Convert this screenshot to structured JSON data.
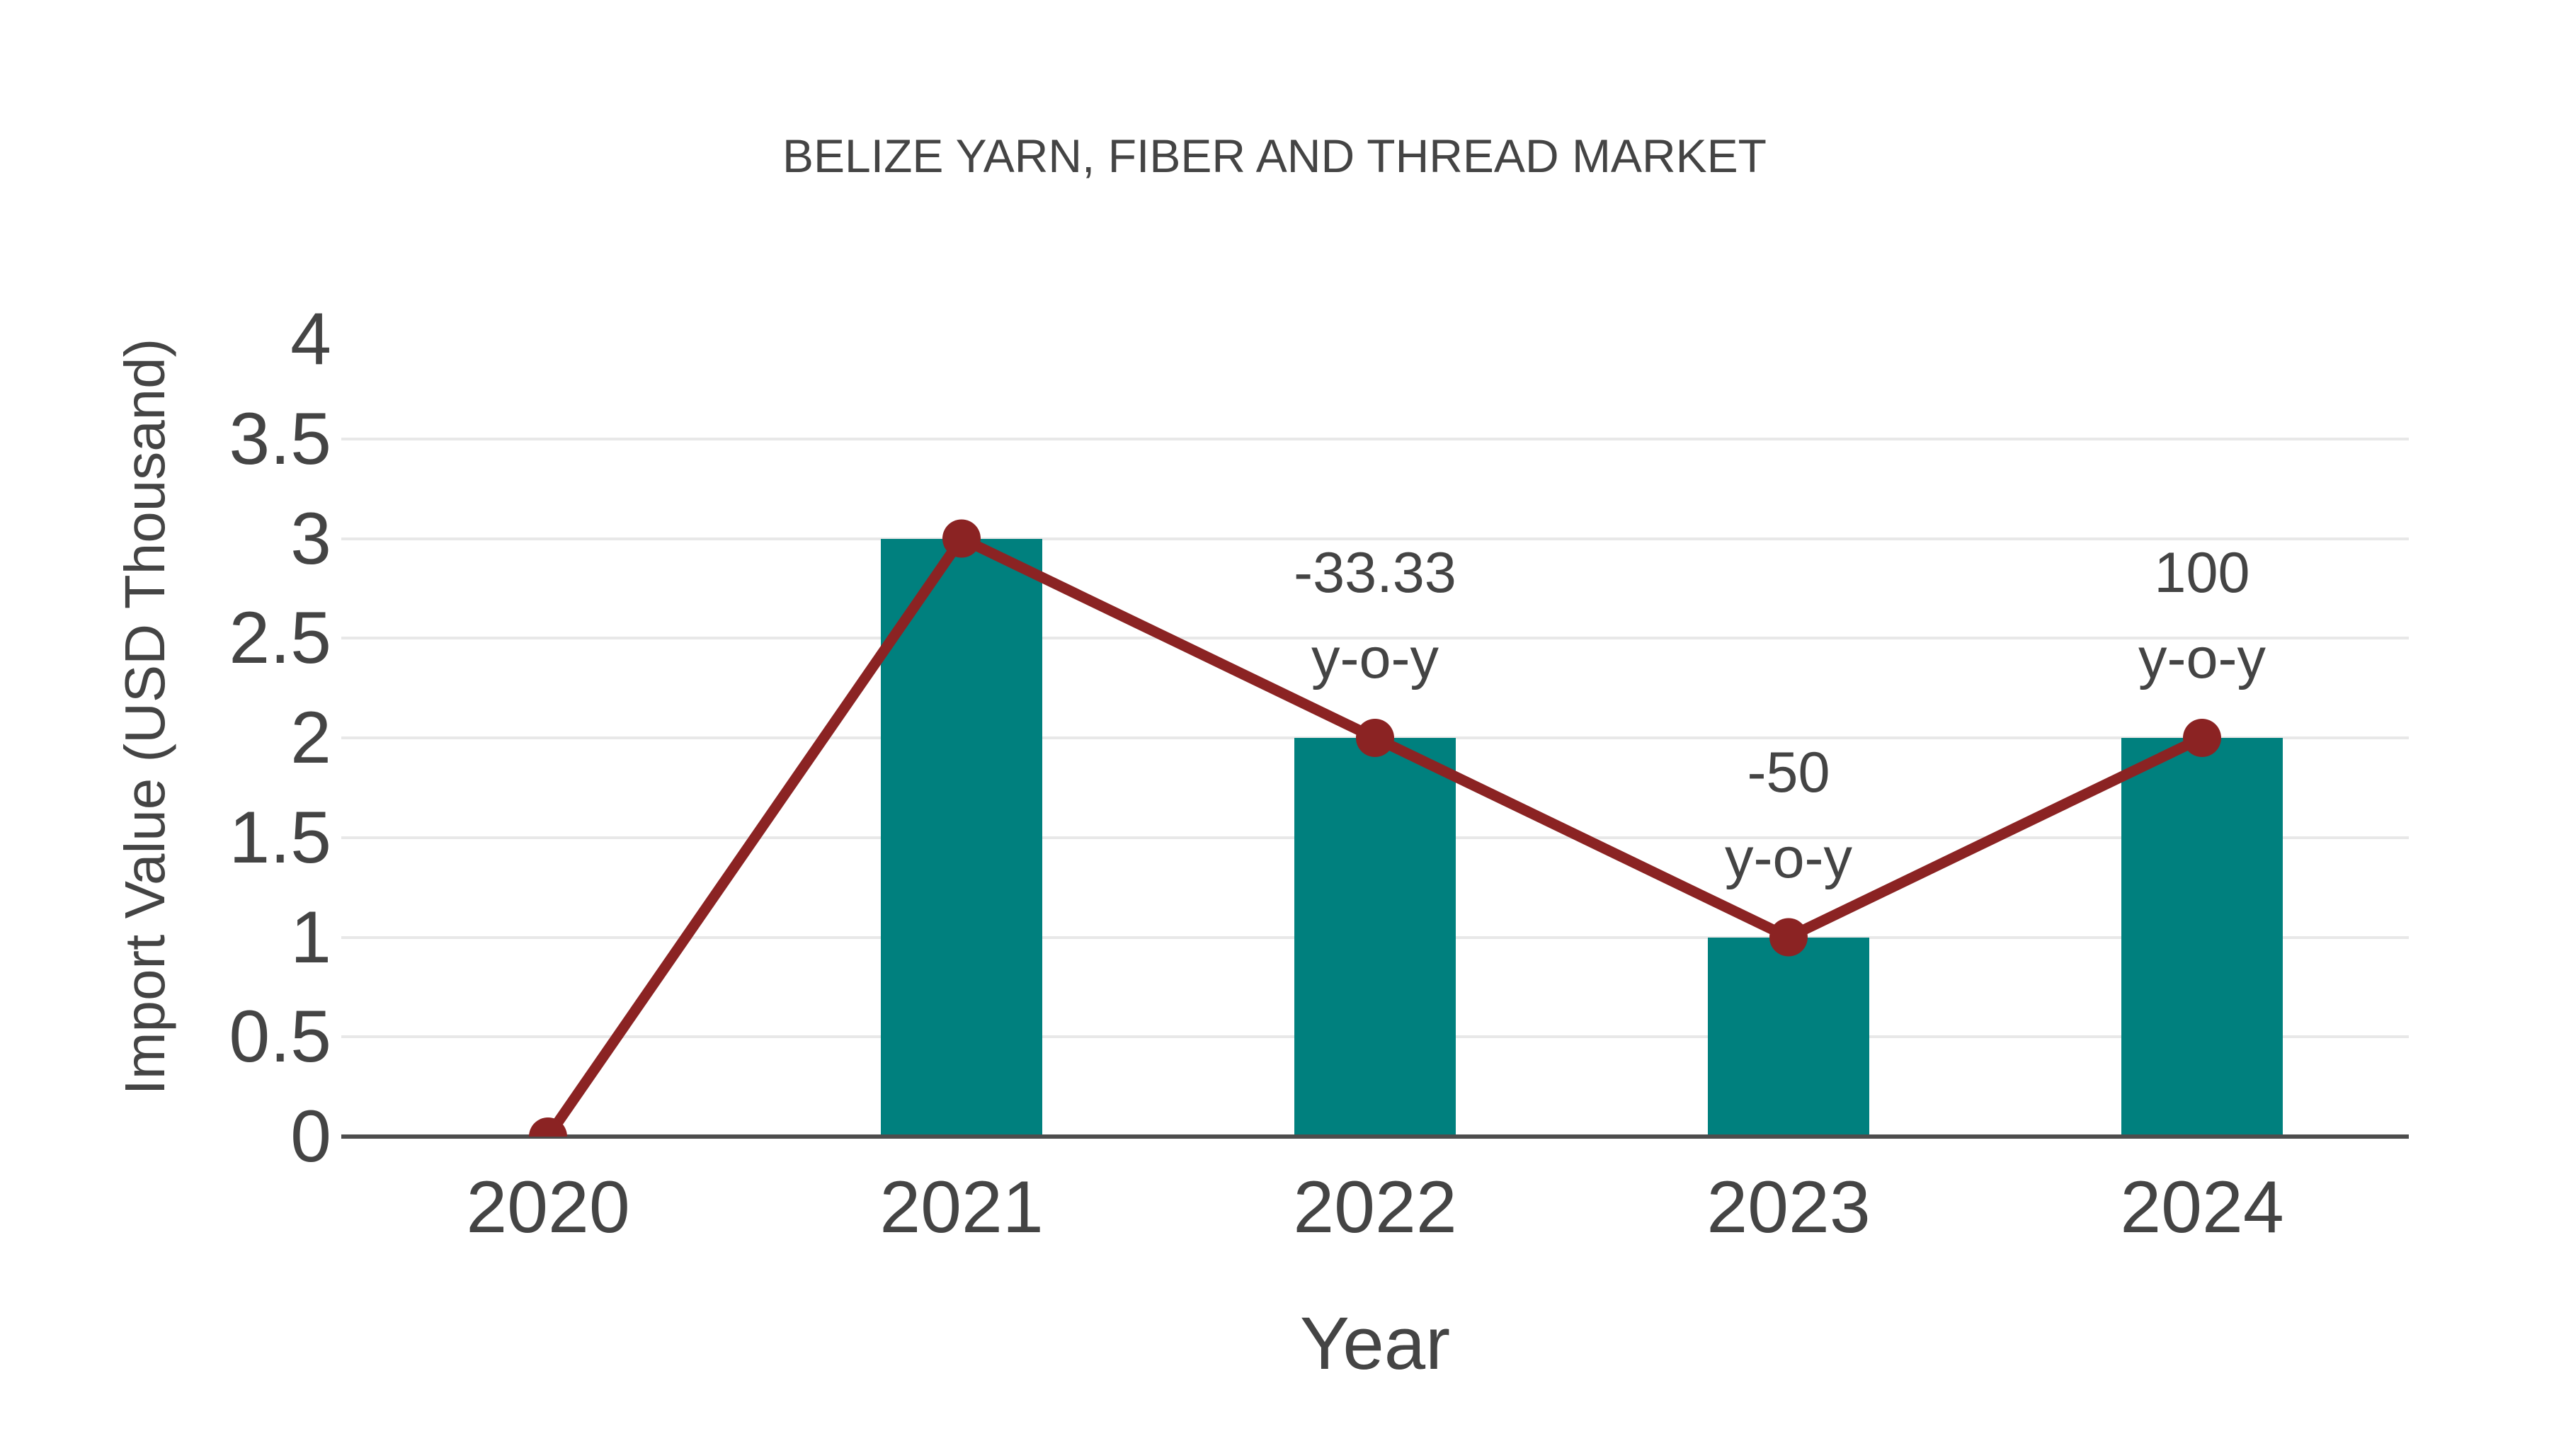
{
  "chart_data": {
    "type": "bar",
    "title": "BELIZE YARN, FIBER AND THREAD MARKET",
    "xlabel": "Year",
    "ylabel": "Import Value (USD Thousand)",
    "categories": [
      "2020",
      "2021",
      "2022",
      "2023",
      "2024"
    ],
    "series": [
      {
        "name": "import-value-bars",
        "type": "bar",
        "values": [
          0,
          3,
          2,
          1,
          2
        ]
      },
      {
        "name": "import-value-line",
        "type": "line",
        "values": [
          0,
          3,
          2,
          1,
          2
        ]
      }
    ],
    "yticks": [
      "0",
      "0.5",
      "1",
      "1.5",
      "2",
      "2.5",
      "3",
      "3.5",
      "4"
    ],
    "ytick_values": [
      0,
      0.5,
      1,
      1.5,
      2,
      2.5,
      3,
      3.5,
      4
    ],
    "ylim": [
      0,
      4.2
    ],
    "grid": true,
    "legend_position": "none",
    "annotations": [
      {
        "category": "2022",
        "lines": [
          "-33.33",
          "y-o-y"
        ]
      },
      {
        "category": "2023",
        "lines": [
          "-50",
          "y-o-y"
        ]
      },
      {
        "category": "2024",
        "lines": [
          "100",
          "y-o-y"
        ]
      }
    ],
    "colors": {
      "bar": "#00807E",
      "line": "#8B2323",
      "marker": "#8B2323",
      "text": "#444444",
      "gridline": "#e8e8e8",
      "axis_line": "#4d4d4d",
      "background": "#ffffff"
    }
  }
}
